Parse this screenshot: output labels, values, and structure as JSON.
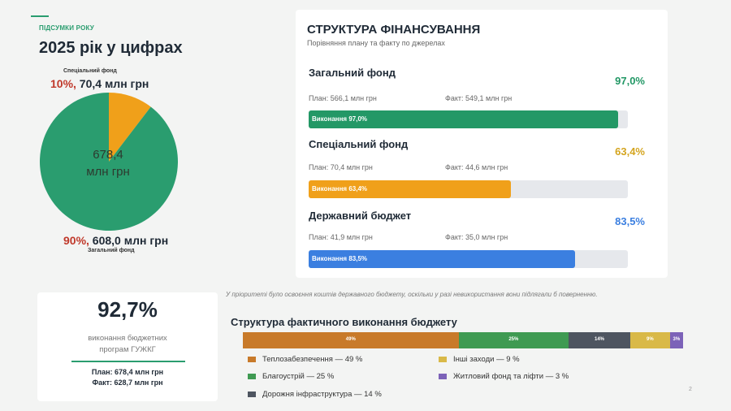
{
  "left": {
    "kicker": "ПІДСУМКИ РОКУ",
    "title": "2025 рік у цифрах",
    "pie": {
      "top_label_small": "Спеціальний фонд",
      "top_pct": "10%,",
      "top_value": " 70,4 млн грн",
      "bottom_pct": "90%,",
      "bottom_value": " 608,0 млн грн",
      "bottom_label_small": "Загальний фонд",
      "center_line1": "678,4",
      "center_line2": "млн грн",
      "slices": [
        {
          "name": "Спеціальний фонд",
          "share": 0.104,
          "color": "#f0a01a"
        },
        {
          "name": "Загальний фонд",
          "share": 0.896,
          "color": "#2a9d6f"
        }
      ]
    }
  },
  "financing": {
    "title": "СТРУКТУРА ФІНАНСУВАННЯ",
    "subtitle": "Порівняння плану та факту по джерелах",
    "sources": [
      {
        "name": "Загальний фонд",
        "pct": "97,0%",
        "plan": "План: 566,1 млн грн",
        "fact": "Факт: 549,1 млн грн",
        "bar_label": "Виконання 97,0%",
        "fill": 0.97,
        "color": "#239866",
        "pct_color": "#239866"
      },
      {
        "name": "Спеціальний фонд",
        "pct": "63,4%",
        "plan": "План: 70,4 млн грн",
        "fact": "Факт: 44,6 млн грн",
        "bar_label": "Виконання 63,4%",
        "fill": 0.634,
        "color": "#f0a01a",
        "pct_color": "#d4a520"
      },
      {
        "name": "Державний бюджет",
        "pct": "83,5%",
        "plan": "План: 41,9 млн грн",
        "fact": "Факт: 35,0 млн грн",
        "bar_label": "Виконання 83,5%",
        "fill": 0.835,
        "color": "#3b7fe0",
        "pct_color": "#3b7fe0"
      }
    ]
  },
  "note": "У пріоритеті було освоєння коштів державного бюджету, оскільки у разі невикористання вони підлягали б поверненню.",
  "kpi": {
    "value": "92,7%",
    "label_line1": "виконання бюджетних",
    "label_line2": "програм ГУЖКГ",
    "plan": "План: 678,4 млн грн",
    "fact": "Факт: 628,7 млн грн"
  },
  "structure": {
    "title": "Структура фактичного виконання бюджету",
    "segments": [
      {
        "label": "49%",
        "share": 49,
        "color": "#c87a2a"
      },
      {
        "label": "25%",
        "share": 25,
        "color": "#3f9a52"
      },
      {
        "label": "14%",
        "share": 14,
        "color": "#4e5560"
      },
      {
        "label": "9%",
        "share": 9,
        "color": "#d9b948"
      },
      {
        "label": "3%",
        "share": 3,
        "color": "#7c62b8"
      }
    ],
    "legend": [
      {
        "text": "Теплозабезпечення — 49 %",
        "color": "#c87a2a"
      },
      {
        "text": "Благоустрій — 25 %",
        "color": "#3f9a52"
      },
      {
        "text": "Дорожня інфраструктура — 14 %",
        "color": "#4e5560"
      },
      {
        "text": "Інші заходи — 9 %",
        "color": "#d9b948"
      },
      {
        "text": "Житловий фонд та ліфти — 3 %",
        "color": "#7c62b8"
      }
    ]
  },
  "page_number": "2"
}
